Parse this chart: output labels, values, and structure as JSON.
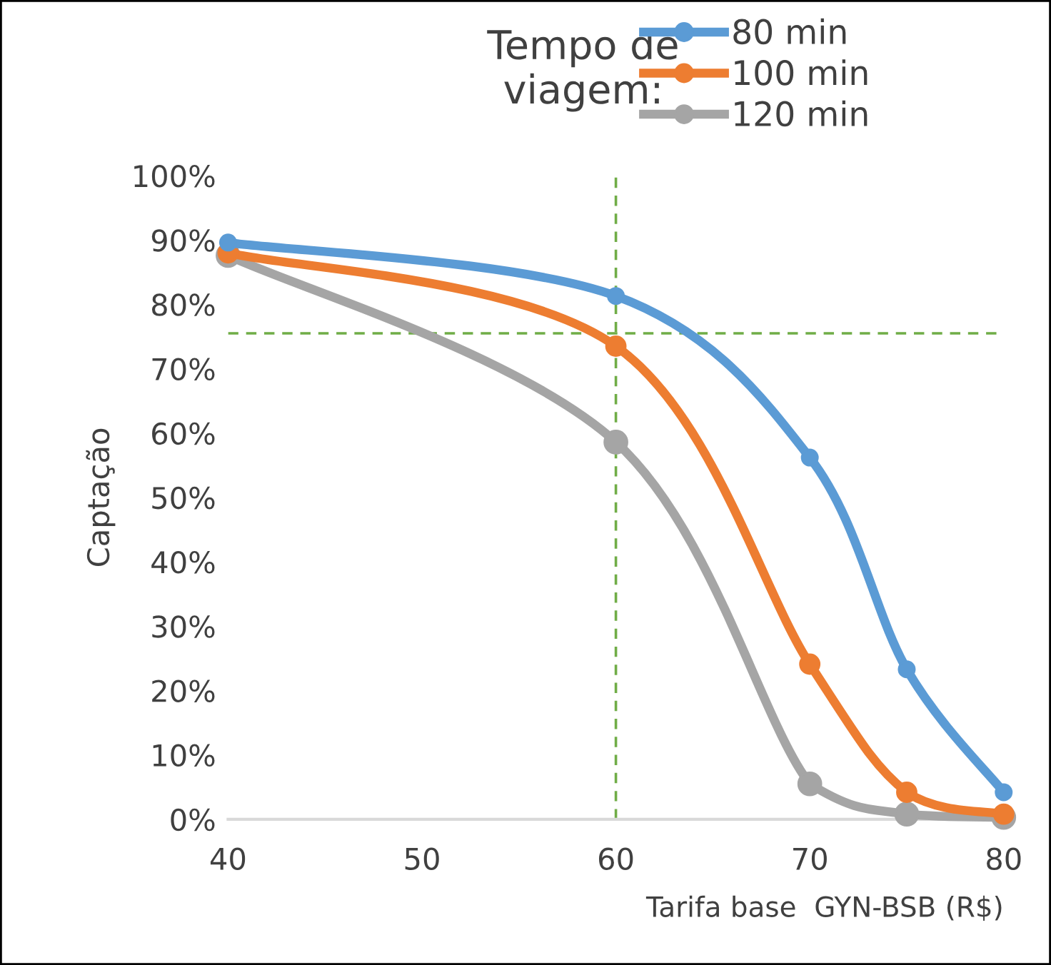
{
  "chart_data": {
    "type": "line",
    "legend_title": "Tempo de\nviagem:",
    "xlabel": "Tarifa base  GYN-BSB (R$)",
    "ylabel": "Captação",
    "x": [
      40,
      60,
      70,
      75,
      80
    ],
    "series": [
      {
        "name": "80 min",
        "color": "#5b9bd5",
        "values": [
          89.6,
          81.3,
          56.2,
          23.3,
          4.2
        ]
      },
      {
        "name": "100 min",
        "color": "#ed7d31",
        "values": [
          88.0,
          73.5,
          24.1,
          4.2,
          0.8
        ]
      },
      {
        "name": "120 min",
        "color": "#a5a5a5",
        "values": [
          87.6,
          58.6,
          5.5,
          0.8,
          0.3
        ]
      }
    ],
    "xlim": [
      40,
      80
    ],
    "xticks": [
      40,
      50,
      60,
      70,
      80
    ],
    "ylim": [
      0,
      100
    ],
    "yticks": [
      {
        "value": 0,
        "label": "0%"
      },
      {
        "value": 10,
        "label": "10%"
      },
      {
        "value": 20,
        "label": "20%"
      },
      {
        "value": 30,
        "label": "30%"
      },
      {
        "value": 40,
        "label": "40%"
      },
      {
        "value": 50,
        "label": "50%"
      },
      {
        "value": 60,
        "label": "60%"
      },
      {
        "value": 70,
        "label": "70%"
      },
      {
        "value": 80,
        "label": "80%"
      },
      {
        "value": 90,
        "label": "90%"
      },
      {
        "value": 100,
        "label": "100%"
      }
    ],
    "ref_lines": [
      {
        "axis": "x",
        "value": 60,
        "color": "#70ad47",
        "line_style": "dashed"
      },
      {
        "axis": "y",
        "value": 75.5,
        "color": "#70ad47",
        "line_style": "dashed"
      }
    ],
    "grid": false,
    "legend": "top",
    "marker": "circle",
    "line_style": "solid"
  }
}
